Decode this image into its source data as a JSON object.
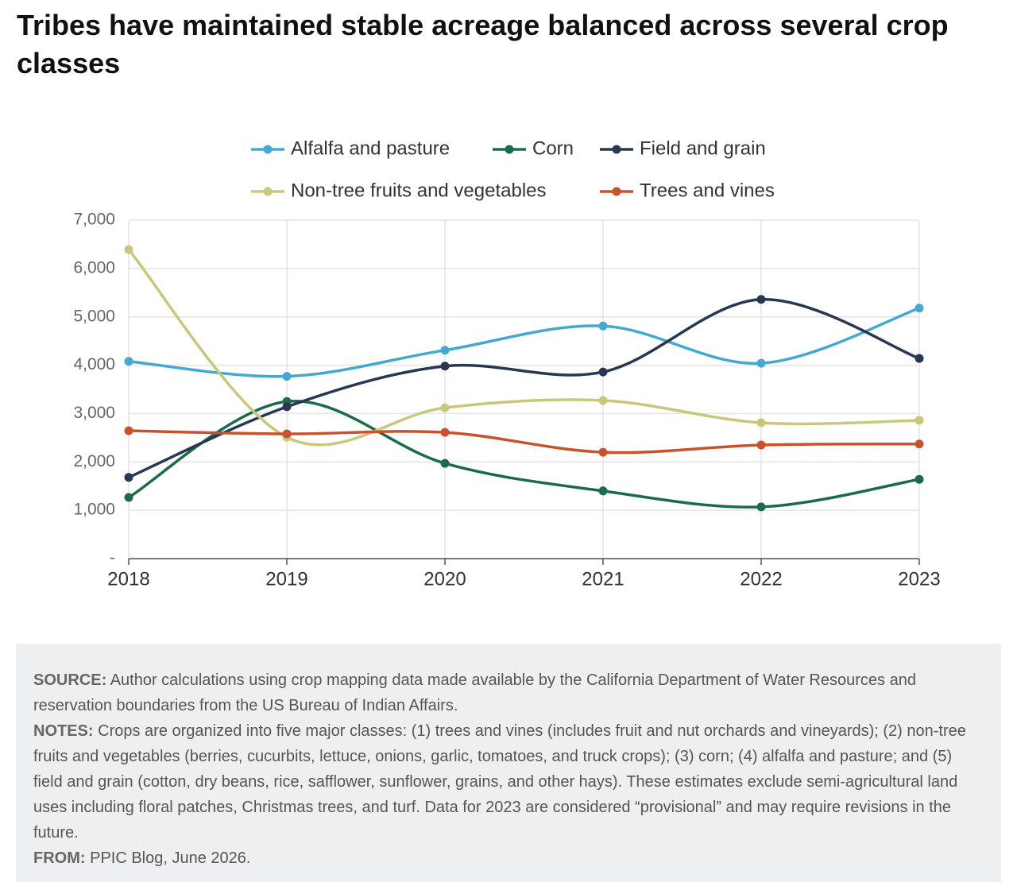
{
  "chart_data": {
    "type": "line",
    "title": "Tribes have maintained stable acreage balanced across several crop classes",
    "categories": [
      "2018",
      "2019",
      "2020",
      "2021",
      "2022",
      "2023"
    ],
    "series": [
      {
        "name": "Alfalfa and pasture",
        "color": "#44a9d0",
        "values": [
          4080,
          3770,
          4310,
          4810,
          4040,
          5180
        ]
      },
      {
        "name": "Corn",
        "color": "#1b6b4b",
        "values": [
          1265,
          3250,
          1970,
          1400,
          1070,
          1640
        ]
      },
      {
        "name": "Field and grain",
        "color": "#273852",
        "values": [
          1680,
          3140,
          3980,
          3860,
          5360,
          4140
        ]
      },
      {
        "name": "Non-tree fruits and vegetables",
        "color": "#c9c77a",
        "values": [
          6390,
          2510,
          3120,
          3270,
          2810,
          2860
        ]
      },
      {
        "name": "Trees and vines",
        "color": "#c9512b",
        "values": [
          2645,
          2580,
          2610,
          2200,
          2350,
          2370
        ]
      }
    ],
    "ylim": [
      0,
      7000
    ],
    "yticks": [
      {
        "value": 0,
        "label": "-"
      },
      {
        "value": 1000,
        "label": "1,000"
      },
      {
        "value": 2000,
        "label": "2,000"
      },
      {
        "value": 3000,
        "label": "3,000"
      },
      {
        "value": 4000,
        "label": "4,000"
      },
      {
        "value": 5000,
        "label": "5,000"
      },
      {
        "value": 6000,
        "label": "6,000"
      },
      {
        "value": 7000,
        "label": "7,000"
      }
    ],
    "grid": true,
    "legend": "top"
  },
  "footer": {
    "source_label": "SOURCE:",
    "source_text": "Author calculations using crop mapping data made available by the California Department of Water Resources and reservation boundaries from the US Bureau of Indian Affairs.",
    "notes_label": "NOTES:",
    "notes_text": "Crops are organized into five major classes: (1) trees and vines (includes fruit and nut orchards and vineyards); (2) non-tree fruits and vegetables (berries, cucurbits, lettuce, onions, garlic, tomatoes, and truck crops); (3) corn; (4) alfalfa and pasture; and (5) field and grain (cotton, dry beans, rice, safflower, sunflower, grains, and other hays). These estimates exclude semi-agricultural land uses including floral patches, Christmas trees, and turf. Data for 2023 are considered “provisional” and may require revisions in the future.",
    "from_label": "FROM:",
    "from_text": "PPIC Blog, June 2026."
  }
}
